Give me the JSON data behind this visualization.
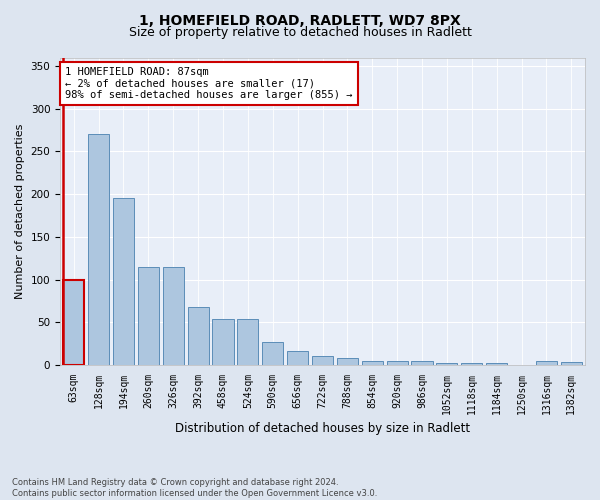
{
  "title": "1, HOMEFIELD ROAD, RADLETT, WD7 8PX",
  "subtitle": "Size of property relative to detached houses in Radlett",
  "xlabel": "Distribution of detached houses by size in Radlett",
  "ylabel": "Number of detached properties",
  "categories": [
    "63sqm",
    "128sqm",
    "194sqm",
    "260sqm",
    "326sqm",
    "392sqm",
    "458sqm",
    "524sqm",
    "590sqm",
    "656sqm",
    "722sqm",
    "788sqm",
    "854sqm",
    "920sqm",
    "986sqm",
    "1052sqm",
    "1118sqm",
    "1184sqm",
    "1250sqm",
    "1316sqm",
    "1382sqm"
  ],
  "values": [
    100,
    270,
    195,
    115,
    115,
    68,
    54,
    54,
    27,
    16,
    10,
    8,
    5,
    5,
    5,
    2,
    2,
    2,
    0,
    4,
    3
  ],
  "bar_color": "#adc6df",
  "bar_edge_color": "#5b8db8",
  "highlight_bar_index": 0,
  "highlight_bar_edge_color": "#cc0000",
  "annotation_text": "1 HOMEFIELD ROAD: 87sqm\n← 2% of detached houses are smaller (17)\n98% of semi-detached houses are larger (855) →",
  "annotation_box_edge": "#cc0000",
  "ylim": [
    0,
    360
  ],
  "yticks": [
    0,
    50,
    100,
    150,
    200,
    250,
    300,
    350
  ],
  "bg_color": "#dde5f0",
  "plot_bg_color": "#e8eef8",
  "grid_color": "#ffffff",
  "footer": "Contains HM Land Registry data © Crown copyright and database right 2024.\nContains public sector information licensed under the Open Government Licence v3.0.",
  "title_fontsize": 10,
  "subtitle_fontsize": 9,
  "xlabel_fontsize": 8.5,
  "ylabel_fontsize": 8,
  "tick_fontsize": 7,
  "annotation_fontsize": 7.5,
  "footer_fontsize": 6
}
